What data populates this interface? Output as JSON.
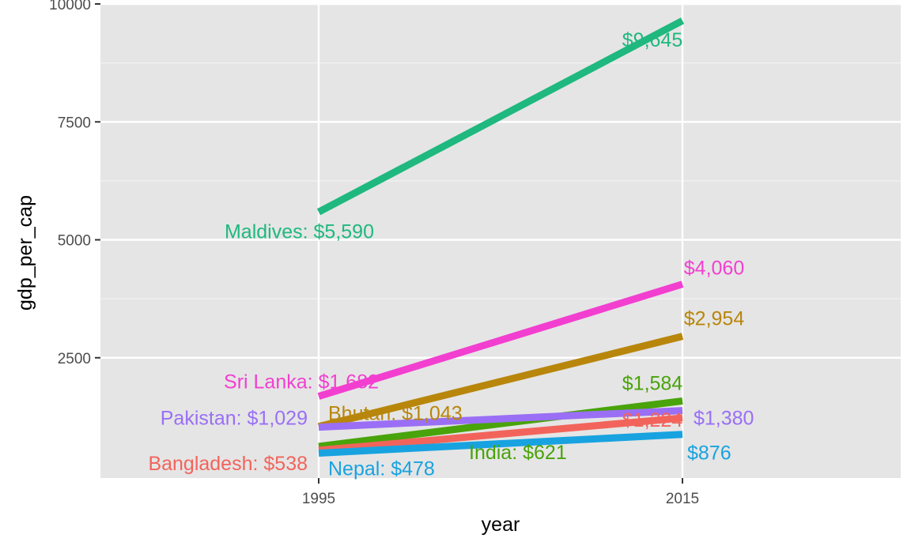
{
  "chart_data": {
    "type": "line",
    "xlabel": "year",
    "ylabel": "gdp_per_cap",
    "x": [
      1995,
      2015
    ],
    "xlim": [
      1983,
      2027
    ],
    "ylim": [
      -50,
      10000
    ],
    "y_ticks": [
      2500,
      5000,
      7500,
      10000
    ],
    "x_ticks": [
      1995,
      2015
    ],
    "grid": true,
    "background": "#e5e5e5",
    "series": [
      {
        "name": "Maldives",
        "values": [
          5590,
          9645
        ],
        "color": "#1fb87f",
        "start_label": "Maldives: $5,590",
        "end_label": "$9,645"
      },
      {
        "name": "Sri Lanka",
        "values": [
          1682,
          4060
        ],
        "color": "#f23fd0",
        "start_label": "Sri Lanka: $1,682",
        "end_label": "$4,060"
      },
      {
        "name": "Bhutan",
        "values": [
          1043,
          2954
        ],
        "color": "#b8860b",
        "start_label": "Bhutan: $1,043",
        "end_label": "$2,954"
      },
      {
        "name": "India",
        "values": [
          621,
          1584
        ],
        "color": "#49a30a",
        "start_label": "India: $621",
        "end_label": "$1,584"
      },
      {
        "name": "Pakistan",
        "values": [
          1029,
          1380
        ],
        "color": "#9a6ff5",
        "start_label": "Pakistan: $1,029",
        "end_label": "$1,380"
      },
      {
        "name": "Bangladesh",
        "values": [
          538,
          1224
        ],
        "color": "#f2645b",
        "start_label": "Bangladesh: $538",
        "end_label": "$1,224"
      },
      {
        "name": "Nepal",
        "values": [
          478,
          876
        ],
        "color": "#18a3e0",
        "start_label": "Nepal: $478",
        "end_label": "$876"
      }
    ]
  }
}
